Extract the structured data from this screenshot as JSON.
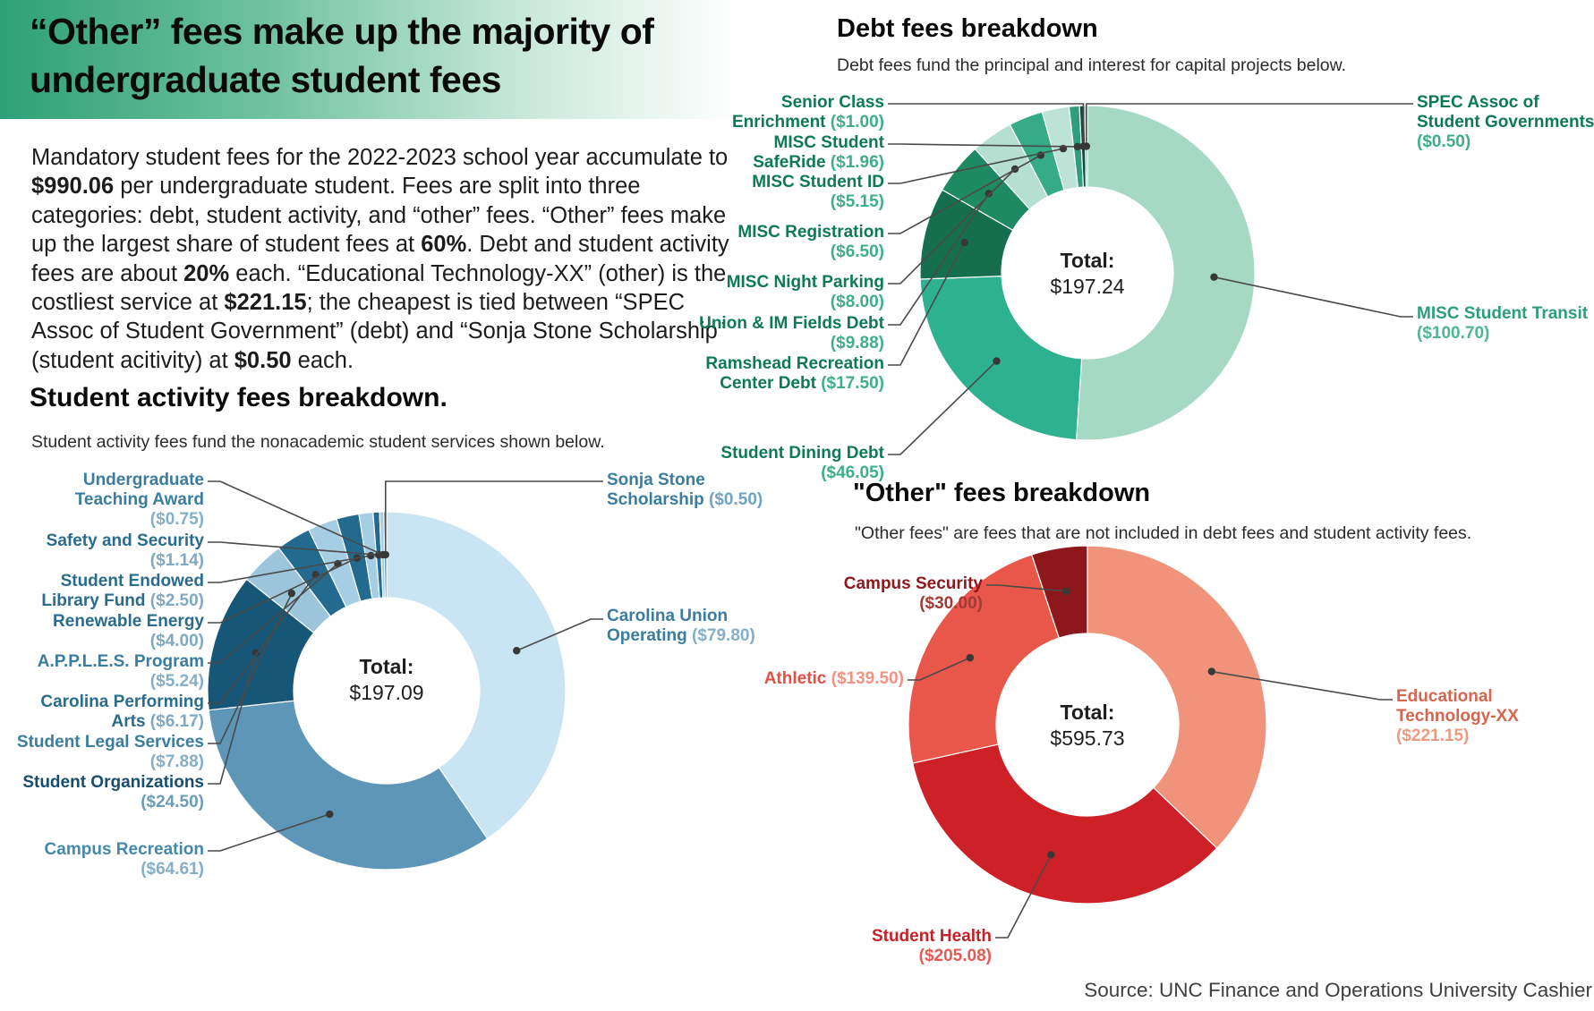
{
  "header": {
    "title": "“Other” fees make up the majority of undergraduate student fees",
    "band_color": "#2ea177"
  },
  "intro": {
    "segments": [
      {
        "t": "Mandatory student fees for the 2022-2023 school year accumulate to ",
        "b": false
      },
      {
        "t": "$990.06",
        "b": true
      },
      {
        "t": " per undergraduate student. Fees are split into three categories: debt, student activity, and “other”  fees.  “Other” fees make up the largest share of student fees at ",
        "b": false
      },
      {
        "t": "60%",
        "b": true
      },
      {
        "t": ". Debt and student activity fees are about ",
        "b": false
      },
      {
        "t": "20%",
        "b": true
      },
      {
        "t": " each. “Educational Technology-XX” (other) is the costliest service at ",
        "b": false
      },
      {
        "t": "$221.15",
        "b": true
      },
      {
        "t": "; the cheapest is tied between “SPEC Assoc of Student Government” (debt) and “Sonja Stone Scholarship” (student acitivity) at ",
        "b": false
      },
      {
        "t": "$0.50",
        "b": true
      },
      {
        "t": " each.",
        "b": false
      }
    ]
  },
  "source": "Source: UNC Finance and Operations University Cashier",
  "chart_data": [
    {
      "id": "activity",
      "type": "pie",
      "style": "donut",
      "title": "Student activity fees breakdown.",
      "subtitle": "Student activity fees fund the nonacademic student services shown below.",
      "total_label": "Total:",
      "total_value": "$197.09",
      "total_numeric": 197.09,
      "start_angle_deg": 0,
      "direction": "clockwise",
      "slices": [
        {
          "name": "Carolina Union Operating",
          "value": 79.8,
          "value_label": "($79.80)",
          "color": "#c9e4f3",
          "label_color": "#3a7d9e",
          "value_color": "#85afc8",
          "label_lines": [
            [
              [
                "n",
                "Carolina Union"
              ]
            ],
            [
              [
                "n",
                "Operating "
              ],
              [
                "v",
                "($79.80)"
              ]
            ]
          ]
        },
        {
          "name": "Campus Recreation",
          "value": 64.61,
          "value_label": "($64.61)",
          "color": "#5d96b7",
          "label_color": "#4589aa",
          "value_color": "#85afc8",
          "label_lines": [
            [
              [
                "n",
                "Campus Recreation"
              ]
            ],
            [
              [
                "v",
                "($64.61)"
              ]
            ]
          ]
        },
        {
          "name": "Student Organizations",
          "value": 24.5,
          "value_label": "($24.50)",
          "color": "#165677",
          "label_color": "#174e6d",
          "value_color": "#6b9cb8",
          "label_lines": [
            [
              [
                "n",
                "Student Organizations"
              ]
            ],
            [
              [
                "v",
                "($24.50)"
              ]
            ]
          ]
        },
        {
          "name": "Student Legal Services",
          "value": 7.88,
          "value_label": "($7.88)",
          "color": "#9cc5dc",
          "label_color": "#3a7d9e",
          "value_color": "#85afc8",
          "label_lines": [
            [
              [
                "n",
                "Student Legal Services"
              ]
            ],
            [
              [
                "v",
                "($7.88)"
              ]
            ]
          ]
        },
        {
          "name": "Carolina Performing Arts",
          "value": 6.17,
          "value_label": "($6.17)",
          "color": "#226b8f",
          "label_color": "#2a6c8e",
          "value_color": "#7fa9c2",
          "label_lines": [
            [
              [
                "n",
                "Carolina Performing"
              ]
            ],
            [
              [
                "n",
                "Arts "
              ],
              [
                "v",
                "($6.17)"
              ]
            ]
          ]
        },
        {
          "name": "A.P.P.L.E.S. Program",
          "value": 5.24,
          "value_label": "($5.24)",
          "color": "#a5cde3",
          "label_color": "#3a7d9e",
          "value_color": "#85afc8",
          "label_lines": [
            [
              [
                "n",
                "A.P.P.L.E.S. Program"
              ]
            ],
            [
              [
                "v",
                "($5.24)"
              ]
            ]
          ]
        },
        {
          "name": "Renewable Energy",
          "value": 4.0,
          "value_label": "($4.00)",
          "color": "#226b8f",
          "label_color": "#2a6c8e",
          "value_color": "#7fa9c2",
          "label_lines": [
            [
              [
                "n",
                "Renewable Energy"
              ]
            ],
            [
              [
                "v",
                "($4.00)"
              ]
            ]
          ]
        },
        {
          "name": "Student Endowed Library Fund",
          "value": 2.5,
          "value_label": "($2.50)",
          "color": "#a5cde3",
          "label_color": "#2a6c8e",
          "value_color": "#7fa9c2",
          "label_lines": [
            [
              [
                "n",
                "Student Endowed"
              ]
            ],
            [
              [
                "n",
                "Library Fund "
              ],
              [
                "v",
                "($2.50)"
              ]
            ]
          ]
        },
        {
          "name": "Safety and Security",
          "value": 1.14,
          "value_label": "($1.14)",
          "color": "#226b8f",
          "label_color": "#2a6c8e",
          "value_color": "#7fa9c2",
          "label_lines": [
            [
              [
                "n",
                "Safety and Security"
              ]
            ],
            [
              [
                "v",
                "($1.14)"
              ]
            ]
          ]
        },
        {
          "name": "Undergraduate Teaching Award",
          "value": 0.75,
          "value_label": "($0.75)",
          "color": "#a5cde3",
          "label_color": "#3a7d9e",
          "value_color": "#85afc8",
          "label_lines": [
            [
              [
                "n",
                "Undergraduate"
              ]
            ],
            [
              [
                "n",
                "Teaching Award"
              ]
            ],
            [
              [
                "v",
                "($0.75)"
              ]
            ]
          ]
        },
        {
          "name": "Sonja Stone Scholarship",
          "value": 0.5,
          "value_label": "($0.50)",
          "color": "#226b8f",
          "label_color": "#3a7d9e",
          "value_color": "#6fa3bf",
          "label_lines": [
            [
              [
                "n",
                "Sonja Stone"
              ]
            ],
            [
              [
                "n",
                "Scholarship "
              ],
              [
                "v",
                "($0.50)"
              ]
            ]
          ]
        }
      ]
    },
    {
      "id": "debt",
      "type": "pie",
      "style": "donut",
      "title": "Debt fees breakdown",
      "subtitle": "Debt fees fund the principal and interest for capital projects below.",
      "total_label": "Total:",
      "total_value": "$197.24",
      "total_numeric": 197.24,
      "start_angle_deg": 0,
      "direction": "clockwise",
      "slices": [
        {
          "name": "MISC Student Transit",
          "value": 100.7,
          "value_label": "($100.70)",
          "color": "#a5d9c4",
          "label_color": "#2b9e7c",
          "value_color": "#4fb595",
          "label_lines": [
            [
              [
                "n",
                "MISC Student Transit"
              ]
            ],
            [
              [
                "v",
                "($100.70)"
              ]
            ]
          ]
        },
        {
          "name": "Student Dining Debt",
          "value": 46.05,
          "value_label": "($46.05)",
          "color": "#2eb18e",
          "label_color": "#0e7a55",
          "value_color": "#3fae8a",
          "label_lines": [
            [
              [
                "n",
                "Student Dining Debt"
              ]
            ],
            [
              [
                "v",
                "($46.05)"
              ]
            ]
          ]
        },
        {
          "name": "Ramshead Recreation Center Debt",
          "value": 17.5,
          "value_label": "($17.50)",
          "color": "#156f4e",
          "label_color": "#0e7a55",
          "value_color": "#3fae8a",
          "label_lines": [
            [
              [
                "n",
                "Ramshead Recreation"
              ]
            ],
            [
              [
                "n",
                "Center Debt "
              ],
              [
                "v",
                "($17.50)"
              ]
            ]
          ]
        },
        {
          "name": "Union & IM Fields Debt",
          "value": 9.88,
          "value_label": "($9.88)",
          "color": "#1e8a62",
          "label_color": "#0e7a55",
          "value_color": "#3fae8a",
          "label_lines": [
            [
              [
                "n",
                "Union & IM Fields Debt"
              ]
            ],
            [
              [
                "v",
                "($9.88)"
              ]
            ]
          ]
        },
        {
          "name": "MISC Night Parking",
          "value": 8.0,
          "value_label": "($8.00)",
          "color": "#b5e0d1",
          "label_color": "#0e7a55",
          "value_color": "#3fae8a",
          "label_lines": [
            [
              [
                "n",
                "MISC Night Parking"
              ]
            ],
            [
              [
                "v",
                "($8.00)"
              ]
            ]
          ]
        },
        {
          "name": "MISC Registration",
          "value": 6.5,
          "value_label": "($6.50)",
          "color": "#35ab86",
          "label_color": "#0e7a55",
          "value_color": "#3fae8a",
          "label_lines": [
            [
              [
                "n",
                "MISC Registration"
              ]
            ],
            [
              [
                "v",
                "($6.50)"
              ]
            ]
          ]
        },
        {
          "name": "MISC Student ID",
          "value": 5.15,
          "value_label": "($5.15)",
          "color": "#bce3d6",
          "label_color": "#0e7a55",
          "value_color": "#3fae8a",
          "label_lines": [
            [
              [
                "n",
                "MISC Student ID"
              ]
            ],
            [
              [
                "v",
                "($5.15)"
              ]
            ]
          ]
        },
        {
          "name": "MISC Student SafeRide",
          "value": 1.96,
          "value_label": "($1.96)",
          "color": "#2f9e7c",
          "label_color": "#0e7a55",
          "value_color": "#3fae8a",
          "label_lines": [
            [
              [
                "n",
                "MISC Student"
              ]
            ],
            [
              [
                "n",
                "SafeRide "
              ],
              [
                "v",
                "($1.96)"
              ]
            ]
          ]
        },
        {
          "name": "Senior Class Enrichment",
          "value": 1.0,
          "value_label": "($1.00)",
          "color": "#0c4f38",
          "label_color": "#0e7a55",
          "value_color": "#3fae8a",
          "label_lines": [
            [
              [
                "n",
                "Senior Class"
              ]
            ],
            [
              [
                "n",
                "Enrichment "
              ],
              [
                "v",
                "($1.00)"
              ]
            ]
          ]
        },
        {
          "name": "SPEC Assoc of Student Governments",
          "value": 0.5,
          "value_label": "($0.50)",
          "color": "#53b79b",
          "label_color": "#0e7a55",
          "value_color": "#3fae8a",
          "label_lines": [
            [
              [
                "n",
                "SPEC Assoc of"
              ]
            ],
            [
              [
                "n",
                "Student Governments"
              ]
            ],
            [
              [
                "v",
                "($0.50)"
              ]
            ]
          ]
        }
      ]
    },
    {
      "id": "other",
      "type": "pie",
      "style": "donut",
      "title": "\"Other\" fees breakdown",
      "subtitle": "\"Other fees\" are fees that are not included in debt fees and student activity fees.",
      "total_label": "Total:",
      "total_value": "$595.73",
      "total_numeric": 595.73,
      "start_angle_deg": 0,
      "direction": "clockwise",
      "slices": [
        {
          "name": "Educational Technology-XX",
          "value": 221.15,
          "value_label": "($221.15)",
          "color": "#f0937a",
          "label_color": "#d4664f",
          "value_color": "#ee9a82",
          "label_lines": [
            [
              [
                "n",
                "Educational"
              ]
            ],
            [
              [
                "n",
                "Technology-XX"
              ]
            ],
            [
              [
                "v",
                "($221.15)"
              ]
            ]
          ]
        },
        {
          "name": "Student Health",
          "value": 205.08,
          "value_label": "($205.08)",
          "color": "#ce2127",
          "label_color": "#c32127",
          "value_color": "#e25b55",
          "label_lines": [
            [
              [
                "n",
                "Student Health"
              ]
            ],
            [
              [
                "v",
                "($205.08)"
              ]
            ]
          ]
        },
        {
          "name": "Athletic",
          "value": 139.5,
          "value_label": "($139.50)",
          "color": "#e9564a",
          "label_color": "#e25045",
          "value_color": "#f09383",
          "label_lines": [
            [
              [
                "n",
                "Athletic "
              ],
              [
                "v",
                "($139.50)"
              ]
            ]
          ]
        },
        {
          "name": "Campus Security",
          "value": 30.0,
          "value_label": "($30.00)",
          "color": "#8c181c",
          "label_color": "#8c181c",
          "value_color": "#a33b35",
          "label_lines": [
            [
              [
                "n",
                "Campus Security"
              ]
            ],
            [
              [
                "v",
                "($30.00)"
              ]
            ]
          ]
        }
      ]
    }
  ],
  "leader_style": {
    "line_color": "#4a4a4a",
    "dot_color": "#383838"
  }
}
